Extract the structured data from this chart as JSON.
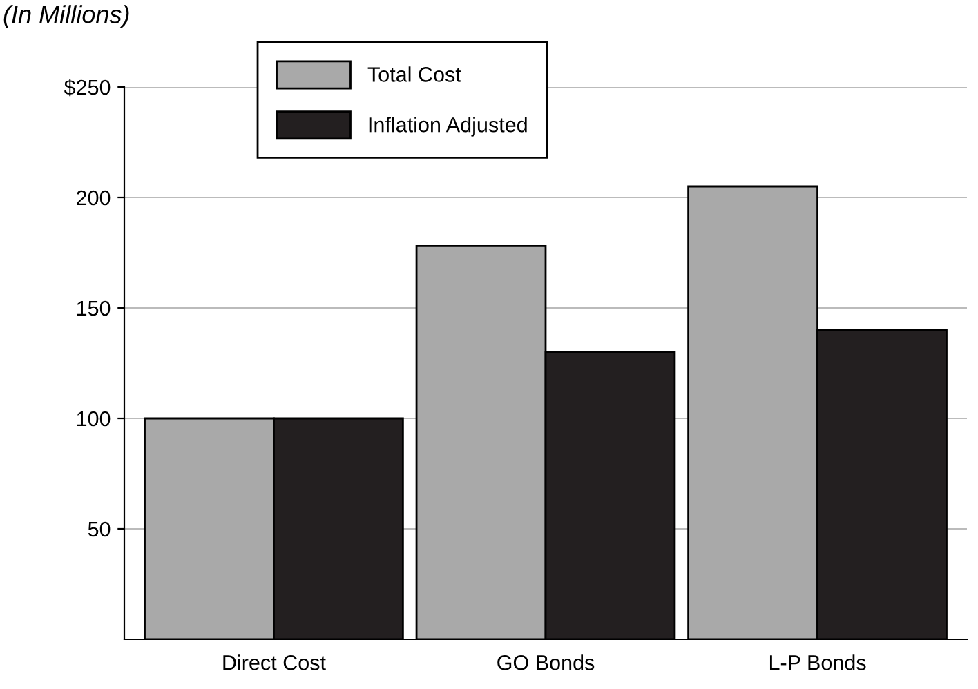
{
  "chart_data": {
    "type": "bar",
    "ylabel": "(In Millions)",
    "categories": [
      "Direct Cost",
      "GO Bonds",
      "L-P Bonds"
    ],
    "series": [
      {
        "name": "Total Cost",
        "color": "#a9a9a9",
        "values": [
          100,
          178,
          205
        ]
      },
      {
        "name": "Inflation Adjusted",
        "color": "#231f20",
        "values": [
          100,
          130,
          140
        ]
      }
    ],
    "ylim": [
      0,
      250
    ],
    "yticks": [
      {
        "value": 250,
        "label": "$250"
      },
      200,
      150,
      100,
      50
    ],
    "grid": "y",
    "legend": "top"
  }
}
